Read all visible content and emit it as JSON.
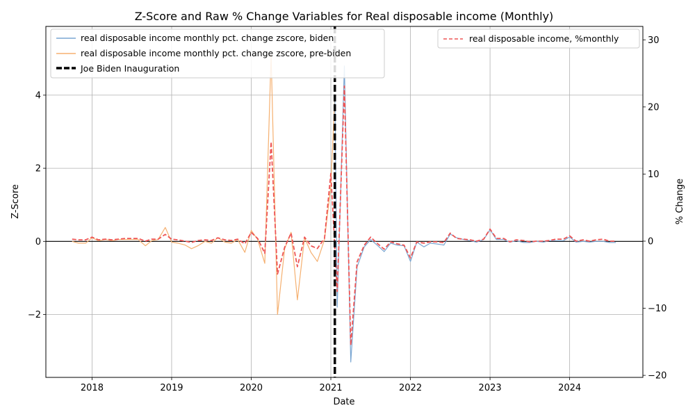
{
  "chart_data": {
    "type": "line",
    "title": "Z-Score and Raw % Change Variables for Real disposable income (Monthly)",
    "xlabel": "Date",
    "ylabel_left": "Z-Score",
    "ylabel_right": "% Change",
    "x_ticks": [
      "2018",
      "2019",
      "2020",
      "2021",
      "2022",
      "2023",
      "2024"
    ],
    "y_left_ticks": [
      -2,
      0,
      2,
      4
    ],
    "y_left_tick_labels": [
      "−2",
      "0",
      "2",
      "4"
    ],
    "y_right_ticks": [
      -20,
      -10,
      0,
      10,
      20,
      30
    ],
    "y_right_tick_labels": [
      "−20",
      "−10",
      "0",
      "10",
      "20",
      "30"
    ],
    "xlim": [
      2017.42,
      2024.92
    ],
    "ylim_left": [
      -3.72,
      5.88
    ],
    "ylim_right": [
      -20.3,
      32.0
    ],
    "grid": true,
    "inauguration_date": 2021.05,
    "colors": {
      "biden": "#7aa6d2",
      "pre_biden": "#f5b070",
      "pct": "#ee5555",
      "inauguration": "#000000"
    },
    "legend_left": {
      "placement": "top-left",
      "entries": [
        "real disposable income monthly pct. change zscore, biden",
        "real disposable income monthly pct. change zscore, pre-biden",
        "Joe Biden Inauguration"
      ]
    },
    "legend_right": {
      "placement": "top-right",
      "entries": [
        "real disposable income, %monthly"
      ]
    },
    "series": [
      {
        "name": "real disposable income monthly pct. change zscore, pre-biden",
        "axis": "left",
        "x": [
          2017.75,
          2017.83,
          2017.92,
          2018.0,
          2018.08,
          2018.17,
          2018.25,
          2018.33,
          2018.42,
          2018.5,
          2018.58,
          2018.67,
          2018.75,
          2018.83,
          2018.92,
          2019.0,
          2019.08,
          2019.17,
          2019.25,
          2019.33,
          2019.42,
          2019.5,
          2019.58,
          2019.67,
          2019.75,
          2019.83,
          2019.92,
          2020.0,
          2020.08,
          2020.17,
          2020.25,
          2020.33,
          2020.42,
          2020.5,
          2020.58,
          2020.67,
          2020.75,
          2020.83,
          2020.92,
          2021.0,
          2021.05
        ],
        "values": [
          0.0,
          -0.05,
          -0.05,
          0.1,
          0.02,
          0.05,
          0.02,
          0.05,
          0.05,
          0.05,
          0.05,
          -0.12,
          0.02,
          0.05,
          0.38,
          -0.02,
          -0.05,
          -0.1,
          -0.2,
          -0.12,
          0.0,
          -0.05,
          0.1,
          -0.02,
          -0.05,
          0.05,
          -0.3,
          0.3,
          0.05,
          -0.6,
          5.1,
          -2.0,
          -0.2,
          0.25,
          -1.6,
          0.1,
          -0.3,
          -0.55,
          0.05,
          1.5,
          4.0
        ]
      },
      {
        "name": "real disposable income monthly pct. change zscore, biden",
        "axis": "left",
        "x": [
          2021.05,
          2021.08,
          2021.17,
          2021.25,
          2021.33,
          2021.42,
          2021.5,
          2021.58,
          2021.67,
          2021.75,
          2021.83,
          2021.92,
          2022.0,
          2022.08,
          2022.17,
          2022.25,
          2022.33,
          2022.42,
          2022.5,
          2022.58,
          2022.67,
          2022.75,
          2022.83,
          2022.92,
          2023.0,
          2023.08,
          2023.17,
          2023.25,
          2023.33,
          2023.42,
          2023.5,
          2023.58,
          2023.67,
          2023.75,
          2023.83,
          2023.92,
          2024.0,
          2024.08,
          2024.17,
          2024.25,
          2024.33,
          2024.42,
          2024.5,
          2024.58
        ],
        "values": [
          4.0,
          -1.8,
          4.8,
          -3.3,
          -0.7,
          -0.15,
          0.05,
          -0.1,
          -0.28,
          -0.05,
          -0.1,
          -0.12,
          -0.55,
          -0.02,
          -0.15,
          -0.05,
          -0.07,
          -0.1,
          0.2,
          0.1,
          0.05,
          0.02,
          -0.02,
          0.05,
          0.32,
          0.05,
          0.05,
          -0.02,
          0.02,
          -0.03,
          -0.03,
          0.0,
          -0.02,
          0.02,
          0.02,
          0.02,
          0.12,
          -0.02,
          0.0,
          -0.02,
          0.0,
          0.0,
          -0.03,
          -0.03
        ]
      },
      {
        "name": "real disposable income, %monthly",
        "axis": "right",
        "x": [
          2017.75,
          2017.83,
          2017.92,
          2018.0,
          2018.08,
          2018.17,
          2018.25,
          2018.33,
          2018.42,
          2018.5,
          2018.58,
          2018.67,
          2018.75,
          2018.83,
          2018.92,
          2019.0,
          2019.08,
          2019.17,
          2019.25,
          2019.33,
          2019.42,
          2019.5,
          2019.58,
          2019.67,
          2019.75,
          2019.83,
          2019.92,
          2020.0,
          2020.08,
          2020.17,
          2020.25,
          2020.33,
          2020.42,
          2020.5,
          2020.58,
          2020.67,
          2020.75,
          2020.83,
          2020.92,
          2021.0,
          2021.08,
          2021.17,
          2021.25,
          2021.33,
          2021.42,
          2021.5,
          2021.58,
          2021.67,
          2021.75,
          2021.83,
          2021.92,
          2022.0,
          2022.08,
          2022.17,
          2022.25,
          2022.33,
          2022.42,
          2022.5,
          2022.58,
          2022.67,
          2022.75,
          2022.83,
          2022.92,
          2023.0,
          2023.08,
          2023.17,
          2023.25,
          2023.33,
          2023.42,
          2023.5,
          2023.58,
          2023.67,
          2023.75,
          2023.83,
          2023.92,
          2024.0,
          2024.08,
          2024.17,
          2024.25,
          2024.33,
          2024.42,
          2024.5,
          2024.58
        ],
        "values": [
          0.3,
          0.2,
          0.2,
          0.6,
          0.2,
          0.3,
          0.2,
          0.3,
          0.4,
          0.4,
          0.4,
          0.0,
          0.3,
          0.3,
          1.0,
          0.3,
          0.2,
          0.0,
          -0.2,
          0.1,
          0.2,
          0.1,
          0.5,
          0.2,
          0.1,
          0.3,
          -0.4,
          1.3,
          0.4,
          -1.8,
          14.8,
          -4.9,
          -0.9,
          1.2,
          -3.8,
          0.6,
          -0.7,
          -1.1,
          0.4,
          10.1,
          -7.5,
          23.1,
          -15.5,
          -3.1,
          -0.6,
          0.6,
          -0.3,
          -1.2,
          -0.1,
          -0.4,
          -0.6,
          -2.5,
          -0.1,
          -0.3,
          -0.1,
          -0.1,
          -0.2,
          1.2,
          0.4,
          0.3,
          0.2,
          0.0,
          0.3,
          1.8,
          0.4,
          0.4,
          -0.1,
          0.2,
          0.1,
          -0.1,
          0.0,
          0.0,
          0.1,
          0.3,
          0.3,
          0.8,
          0.0,
          0.2,
          0.0,
          0.2,
          0.3,
          0.0,
          0.0
        ]
      }
    ]
  }
}
